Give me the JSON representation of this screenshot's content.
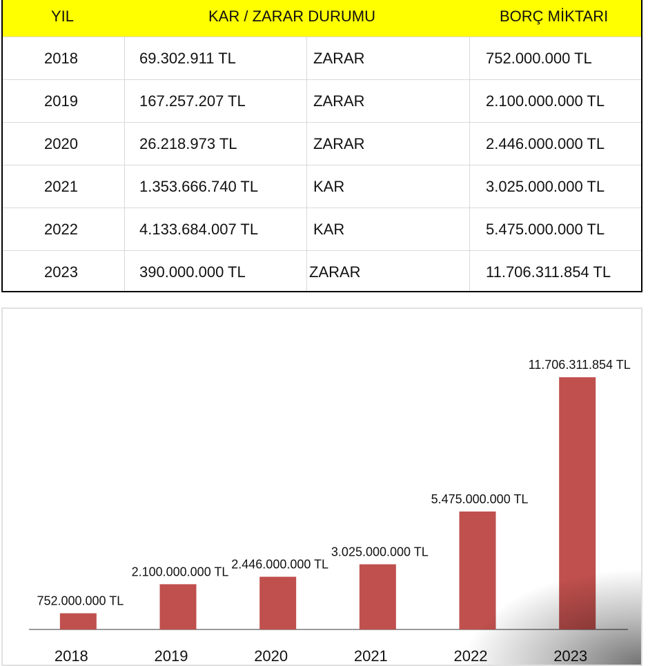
{
  "table": {
    "headers": {
      "year": "YIL",
      "status": "KAR / ZARAR DURUMU",
      "debt": "BORÇ MİKTARI"
    },
    "rows": [
      {
        "year": "2018",
        "amount": "69.302.911 TL",
        "status": "ZARAR",
        "debt": "752.000.000 TL"
      },
      {
        "year": "2019",
        "amount": "167.257.207 TL",
        "status": "ZARAR",
        "debt": "2.100.000.000 TL"
      },
      {
        "year": "2020",
        "amount": "26.218.973 TL",
        "status": "ZARAR",
        "debt": "2.446.000.000 TL"
      },
      {
        "year": "2021",
        "amount": "1.353.666.740 TL",
        "status": "KAR",
        "debt": "3.025.000.000 TL"
      },
      {
        "year": "2022",
        "amount": "4.133.684.007 TL",
        "status": "KAR",
        "debt": "5.475.000.000 TL"
      },
      {
        "year": "2023",
        "amount": "390.000.000 TL",
        "status": "ZARAR",
        "debt": "11.706.311.854 TL"
      }
    ]
  },
  "colors": {
    "header_bg": "#ffff00",
    "bar": "#c0504d"
  },
  "chart_data": {
    "type": "bar",
    "categories": [
      "2018",
      "2019",
      "2020",
      "2021",
      "2022",
      "2023"
    ],
    "values": [
      752000000,
      2100000000,
      2446000000,
      3025000000,
      5475000000,
      11706311854
    ],
    "data_labels": [
      "752.000.000 TL",
      "2.100.000.000 TL",
      "2.446.000.000 TL",
      "3.025.000.000 TL",
      "5.475.000.000 TL",
      "11.706.311.854 TL"
    ],
    "title": "",
    "xlabel": "",
    "ylabel": "",
    "ylim": [
      0,
      12000000000
    ],
    "grid": false,
    "legend": "none"
  }
}
